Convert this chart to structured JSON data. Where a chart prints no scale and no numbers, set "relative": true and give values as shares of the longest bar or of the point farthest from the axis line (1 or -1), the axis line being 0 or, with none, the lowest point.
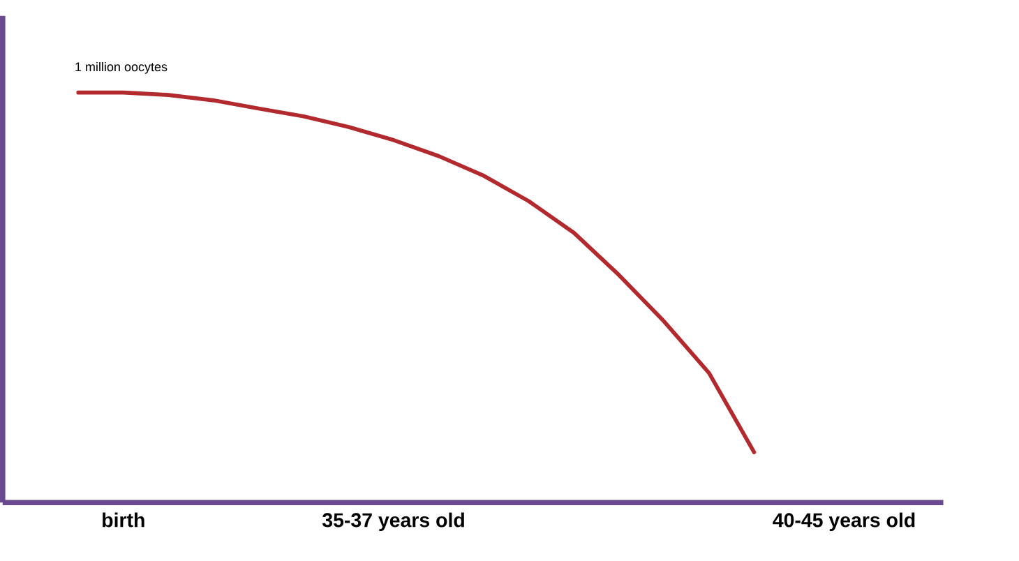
{
  "chart_data": {
    "type": "line",
    "relative": true,
    "categories": [
      null,
      "birth",
      null,
      null,
      null,
      null,
      null,
      "35-37 years old",
      null,
      null,
      null,
      null,
      null,
      null,
      null,
      null,
      null,
      "40-45 years old"
    ],
    "series": [
      {
        "color": "#b22a2e",
        "values": [
          1.0,
          1.0,
          0.994,
          0.981,
          0.961,
          0.942,
          0.916,
          0.884,
          0.845,
          0.797,
          0.735,
          0.658,
          0.555,
          0.442,
          0.316,
          0.123,
          null,
          null
        ]
      }
    ],
    "annotations": [
      "1 million oocytes"
    ],
    "marker": "none",
    "line_style": "solid",
    "grid": false,
    "legend": false
  }
}
